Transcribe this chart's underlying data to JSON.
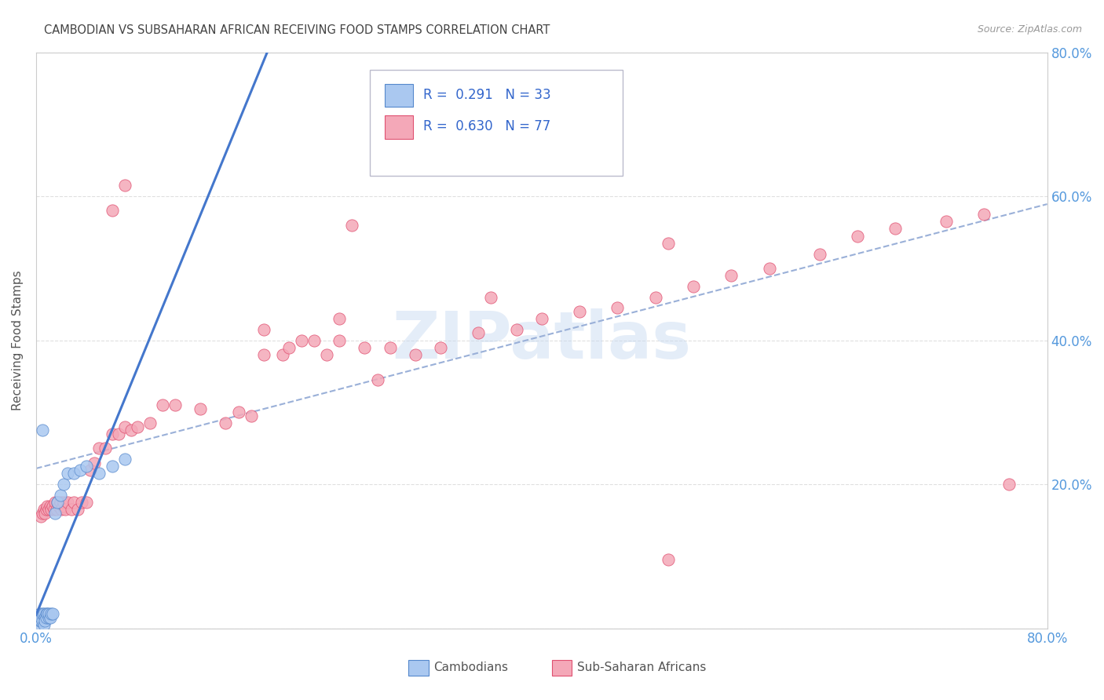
{
  "title": "CAMBODIAN VS SUBSAHARAN AFRICAN RECEIVING FOOD STAMPS CORRELATION CHART",
  "source": "Source: ZipAtlas.com",
  "ylabel": "Receiving Food Stamps",
  "watermark": "ZIPatlas",
  "legend_R_cambodian": "0.291",
  "legend_N_cambodian": "33",
  "legend_R_subsaharan": "0.630",
  "legend_N_subsaharan": "77",
  "legend_label_cambodian": "Cambodians",
  "legend_label_subsaharan": "Sub-Saharan Africans",
  "cambodian_color": "#aac8f0",
  "subsaharan_color": "#f4a8b8",
  "cambodian_edge_color": "#5588cc",
  "subsaharan_edge_color": "#e05070",
  "cambodian_line_color": "#4477cc",
  "subsaharan_line_color": "#e05878",
  "trendline_dashed_color": "#9ab0d8",
  "background_color": "#ffffff",
  "grid_color": "#e0e0e0",
  "title_color": "#444444",
  "axis_label_color": "#555555",
  "tick_label_color": "#5599dd",
  "source_color": "#999999",
  "legend_text_color": "#3366cc",
  "xlim": [
    0.0,
    0.8
  ],
  "ylim": [
    0.0,
    0.8
  ],
  "cam_x": [
    0.001,
    0.002,
    0.002,
    0.003,
    0.003,
    0.004,
    0.004,
    0.005,
    0.005,
    0.006,
    0.006,
    0.007,
    0.007,
    0.008,
    0.008,
    0.009,
    0.01,
    0.01,
    0.011,
    0.012,
    0.013,
    0.015,
    0.017,
    0.019,
    0.022,
    0.025,
    0.03,
    0.035,
    0.04,
    0.05,
    0.06,
    0.07,
    0.005
  ],
  "cam_y": [
    0.01,
    0.015,
    0.005,
    0.01,
    0.02,
    0.01,
    0.015,
    0.01,
    0.02,
    0.005,
    0.02,
    0.015,
    0.01,
    0.02,
    0.015,
    0.02,
    0.015,
    0.02,
    0.015,
    0.02,
    0.02,
    0.16,
    0.175,
    0.185,
    0.2,
    0.215,
    0.215,
    0.22,
    0.225,
    0.215,
    0.225,
    0.235,
    0.275
  ],
  "sub_x": [
    0.004,
    0.005,
    0.006,
    0.007,
    0.008,
    0.009,
    0.01,
    0.011,
    0.012,
    0.013,
    0.014,
    0.015,
    0.016,
    0.017,
    0.018,
    0.019,
    0.02,
    0.021,
    0.022,
    0.023,
    0.025,
    0.028,
    0.03,
    0.033,
    0.036,
    0.04,
    0.043,
    0.046,
    0.05,
    0.055,
    0.06,
    0.065,
    0.07,
    0.075,
    0.08,
    0.09,
    0.1,
    0.11,
    0.13,
    0.15,
    0.16,
    0.17,
    0.18,
    0.195,
    0.2,
    0.21,
    0.22,
    0.23,
    0.24,
    0.26,
    0.28,
    0.3,
    0.32,
    0.35,
    0.38,
    0.4,
    0.43,
    0.46,
    0.49,
    0.52,
    0.55,
    0.58,
    0.62,
    0.65,
    0.68,
    0.72,
    0.75,
    0.77,
    0.5,
    0.5,
    0.06,
    0.07,
    0.25,
    0.27,
    0.36,
    0.24,
    0.18
  ],
  "sub_y": [
    0.155,
    0.16,
    0.165,
    0.16,
    0.165,
    0.17,
    0.165,
    0.17,
    0.165,
    0.17,
    0.165,
    0.175,
    0.165,
    0.175,
    0.17,
    0.175,
    0.165,
    0.17,
    0.175,
    0.165,
    0.175,
    0.165,
    0.175,
    0.165,
    0.175,
    0.175,
    0.22,
    0.23,
    0.25,
    0.25,
    0.27,
    0.27,
    0.28,
    0.275,
    0.28,
    0.285,
    0.31,
    0.31,
    0.305,
    0.285,
    0.3,
    0.295,
    0.38,
    0.38,
    0.39,
    0.4,
    0.4,
    0.38,
    0.4,
    0.39,
    0.39,
    0.38,
    0.39,
    0.41,
    0.415,
    0.43,
    0.44,
    0.445,
    0.46,
    0.475,
    0.49,
    0.5,
    0.52,
    0.545,
    0.555,
    0.565,
    0.575,
    0.2,
    0.095,
    0.535,
    0.58,
    0.615,
    0.56,
    0.345,
    0.46,
    0.43,
    0.415
  ]
}
